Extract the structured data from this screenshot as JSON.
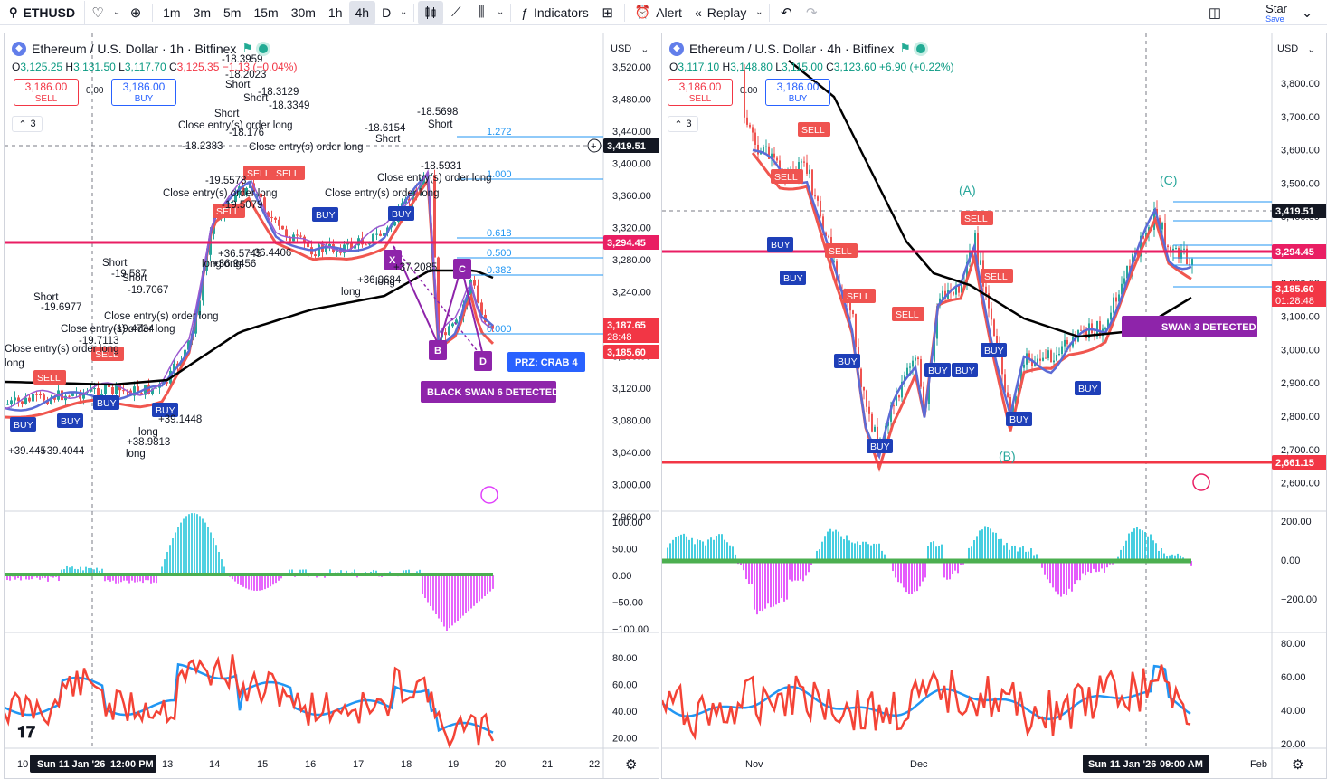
{
  "toolbar": {
    "symbol": "ETHUSD",
    "intervals": [
      "1m",
      "3m",
      "5m",
      "15m",
      "30m",
      "1h",
      "4h",
      "D"
    ],
    "active_interval": "4h",
    "indicators_label": "Indicators",
    "alert_label": "Alert",
    "replay_label": "Replay",
    "save_name": "Star",
    "save_label": "Save"
  },
  "left": {
    "title": "Ethereum / U.S. Dollar · 1h · Bitfinex",
    "ohlc": {
      "o": "3,125.25",
      "h": "3,131.50",
      "l": "3,117.70",
      "c": "3,125.35",
      "chg": "−1.13 (−0.04%)"
    },
    "sell_price": "3,186.00",
    "sell_label": "SELL",
    "buy_price": "3,186.00",
    "buy_label": "BUY",
    "spread": "0.00",
    "collapse": "3",
    "currency": "USD",
    "price_ticks": [
      "3,520.00",
      "3,480.00",
      "3,440.00",
      "3,400.00",
      "3,360.00",
      "3,320.00",
      "3,280.00",
      "3,240.00",
      "3,200.00",
      "3,160.00",
      "3,120.00",
      "3,080.00",
      "3,040.00",
      "3,000.00",
      "2,960.00"
    ],
    "osc_ticks": [
      "100.00",
      "50.00",
      "0.00",
      "−50.00",
      "−100.00"
    ],
    "rsi_ticks": [
      "80.00",
      "60.00",
      "40.00",
      "20.00"
    ],
    "time_ticks": [
      "10",
      "13",
      "14",
      "15",
      "16",
      "17",
      "18",
      "19",
      "20",
      "21",
      "22"
    ],
    "crosshair_date": "Sun 11 Jan '26",
    "crosshair_time": "12:00 PM",
    "price_labels": {
      "cross": "3,419.51",
      "pink": "3,294.45",
      "last": "3,187.65",
      "countdown": "28:48",
      "ask": "3,185.60"
    },
    "fib": [
      "1.272",
      "1.000",
      "0.618",
      "0.500",
      "0.382",
      "0.000"
    ],
    "harmonic_points": [
      "X",
      "C",
      "B",
      "D"
    ],
    "prz": "PRZ: CRAB 4",
    "swan": "BLACK SWAN 6 DETECTED",
    "annotations": [
      "-18.3959",
      "-18.2023",
      "Short",
      "-18.3129",
      "Short",
      "-18.3349",
      "Short",
      "-18.176",
      "Close entry(s) order long",
      "Close entry(s) order long",
      "-18.2383",
      "-18.6154",
      "Short",
      "-18.5698",
      "Short",
      "-18.5931",
      "Close entry(s) order long",
      "-19.5578",
      "Close entry(s) order long",
      "Close entry(s) order long",
      "-19.5079",
      "Short",
      "-19.587",
      "Short",
      "-19.7067",
      "Short",
      "-19.6977",
      "Close entry(s) order long",
      "-19.4734",
      "Close entry(s) order long",
      "-19.7113",
      "Close entry(s) order long",
      "long",
      "+36.5745",
      "long",
      "+36.4406",
      "+36.9456",
      "long",
      "+36.9684",
      "long",
      "+37.2085",
      "long",
      "+39.1448",
      "long",
      "+38.9813",
      "long",
      "+39.4044",
      "+39.445"
    ],
    "signals": [
      "SELL",
      "SELL",
      "SELL",
      "SELL",
      "SELL",
      "BUY",
      "BUY",
      "BUY",
      "BUY",
      "BUY",
      "BUY"
    ]
  },
  "right": {
    "title": "Ethereum / U.S. Dollar · 4h · Bitfinex",
    "ohlc": {
      "o": "3,117.10",
      "h": "3,148.80",
      "l": "3,115.00",
      "c": "3,123.60",
      "chg": "+6.90 (+0.22%)"
    },
    "sell_price": "3,186.00",
    "sell_label": "SELL",
    "buy_price": "3,186.00",
    "buy_label": "BUY",
    "spread": "0.00",
    "collapse": "3",
    "currency": "USD",
    "price_ticks": [
      "3,800.00",
      "3,700.00",
      "3,600.00",
      "3,500.00",
      "3,400.00",
      "3,300.00",
      "3,200.00",
      "3,100.00",
      "3,000.00",
      "2,900.00",
      "2,800.00",
      "2,700.00",
      "2,600.00"
    ],
    "osc_ticks": [
      "200.00",
      "0.00",
      "−200.00"
    ],
    "rsi_ticks": [
      "80.00",
      "60.00",
      "40.00",
      "20.00"
    ],
    "time_ticks": [
      "Nov",
      "Dec",
      "Feb"
    ],
    "crosshair_date": "Sun 11 Jan '26",
    "crosshair_time": "09:00 AM",
    "price_labels": {
      "cross": "3,419.51",
      "pink": "3,294.45",
      "last": "3,185.60",
      "countdown": "01:28:48",
      "red": "2,661.15"
    },
    "waves": [
      "(A)",
      "(B)",
      "(C)"
    ],
    "swan": "SWAN 3 DETECTED",
    "signals": [
      "SELL",
      "SELL",
      "SELL",
      "SELL",
      "SELL",
      "SELL",
      "SELL",
      "BUY",
      "BUY",
      "BUY",
      "BUY",
      "BUY",
      "BUY",
      "BUY",
      "BUY",
      "BUY"
    ]
  },
  "colors": {
    "pink_line": "#e91e63",
    "red_line": "#f23645",
    "ema_black": "#000000",
    "macd_up": "#26c6da",
    "macd_down": "#e040fb",
    "rsi_red": "#f44336",
    "rsi_blue": "#2196f3",
    "buy_blue": "#1e3fb8",
    "sell_red": "#ef5350",
    "purple": "#8e24aa"
  }
}
